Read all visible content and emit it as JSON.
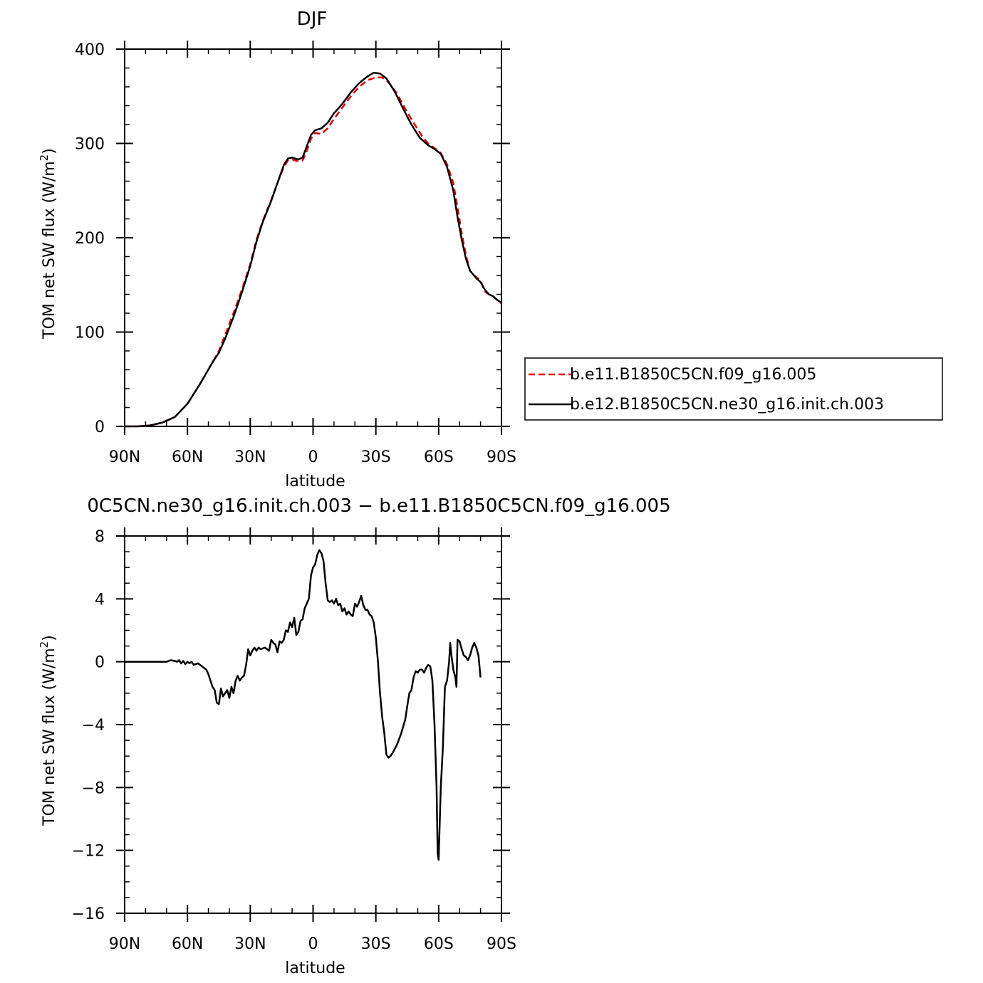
{
  "chart_data": [
    {
      "type": "line",
      "title": "DJF",
      "xlabel": "latitude",
      "ylabel": "TOM net SW flux (W/m²)",
      "ylabel_parts": {
        "main": "TOM net SW flux (W/m",
        "sup": "2",
        "close": ")"
      },
      "xlim": [
        90,
        -90
      ],
      "ylim": [
        0,
        400
      ],
      "x_ticks": [
        {
          "value": 90,
          "label": "90N"
        },
        {
          "value": 60,
          "label": "60N"
        },
        {
          "value": 30,
          "label": "30N"
        },
        {
          "value": 0,
          "label": "0"
        },
        {
          "value": -30,
          "label": "30S"
        },
        {
          "value": -60,
          "label": "60S"
        },
        {
          "value": -90,
          "label": "90S"
        }
      ],
      "y_ticks": [
        {
          "value": 0,
          "label": "0"
        },
        {
          "value": 100,
          "label": "100"
        },
        {
          "value": 200,
          "label": "200"
        },
        {
          "value": 300,
          "label": "300"
        },
        {
          "value": 400,
          "label": "400"
        }
      ],
      "legend_position": "right",
      "series": [
        {
          "name": "b.e11.B1850C5CN.f09_g16.005",
          "color": "#e00000",
          "dash": "dashed",
          "points": [
            [
              90,
              0
            ],
            [
              84,
              0
            ],
            [
              78,
              1
            ],
            [
              72,
              4
            ],
            [
              66,
              10
            ],
            [
              60,
              24
            ],
            [
              54,
              45
            ],
            [
              48,
              68
            ],
            [
              45,
              80
            ],
            [
              42,
              97
            ],
            [
              38,
              120
            ],
            [
              34,
              145
            ],
            [
              30,
              172
            ],
            [
              27,
              198
            ],
            [
              24,
              218
            ],
            [
              20,
              240
            ],
            [
              17,
              258
            ],
            [
              14,
              275
            ],
            [
              12,
              282
            ],
            [
              10,
              283
            ],
            [
              7,
              281
            ],
            [
              5,
              282
            ],
            [
              3,
              292
            ],
            [
              1,
              305
            ],
            [
              -1,
              311
            ],
            [
              -4,
              310
            ],
            [
              -7,
              316
            ],
            [
              -10,
              326
            ],
            [
              -14,
              338
            ],
            [
              -18,
              350
            ],
            [
              -22,
              360
            ],
            [
              -26,
              367
            ],
            [
              -30,
              370
            ],
            [
              -33,
              370
            ],
            [
              -36,
              365
            ],
            [
              -40,
              353
            ],
            [
              -44,
              337
            ],
            [
              -48,
              322
            ],
            [
              -52,
              308
            ],
            [
              -55,
              300
            ],
            [
              -58,
              295
            ],
            [
              -61,
              290
            ],
            [
              -64,
              278
            ],
            [
              -67,
              258
            ],
            [
              -69,
              232
            ],
            [
              -71,
              205
            ],
            [
              -73,
              182
            ],
            [
              -75,
              165
            ],
            [
              -78,
              158
            ],
            [
              -80,
              155
            ],
            [
              -82,
              143
            ],
            [
              -84,
              140
            ],
            [
              -86,
              138
            ],
            [
              -88,
              134
            ],
            [
              -90,
              130
            ]
          ]
        },
        {
          "name": "b.e12.B1850C5CN.ne30_g16.init.ch.003",
          "color": "#000000",
          "dash": "solid",
          "points": [
            [
              90,
              0
            ],
            [
              84,
              0
            ],
            [
              78,
              1
            ],
            [
              72,
              4
            ],
            [
              66,
              10
            ],
            [
              60,
              24
            ],
            [
              54,
              45
            ],
            [
              48,
              68
            ],
            [
              45,
              78
            ],
            [
              42,
              93
            ],
            [
              38,
              116
            ],
            [
              34,
              142
            ],
            [
              30,
              170
            ],
            [
              27,
              196
            ],
            [
              24,
              217
            ],
            [
              20,
              239
            ],
            [
              17,
              258
            ],
            [
              14,
              277
            ],
            [
              12,
              284
            ],
            [
              10,
              285
            ],
            [
              7,
              283
            ],
            [
              5,
              285
            ],
            [
              3,
              297
            ],
            [
              1,
              309
            ],
            [
              -1,
              314
            ],
            [
              -4,
              316
            ],
            [
              -7,
              322
            ],
            [
              -10,
              332
            ],
            [
              -14,
              342
            ],
            [
              -18,
              354
            ],
            [
              -22,
              364
            ],
            [
              -26,
              371
            ],
            [
              -29,
              375
            ],
            [
              -32,
              374
            ],
            [
              -35,
              369
            ],
            [
              -39,
              355
            ],
            [
              -43,
              337
            ],
            [
              -47,
              320
            ],
            [
              -51,
              306
            ],
            [
              -55,
              298
            ],
            [
              -58,
              294
            ],
            [
              -61,
              289
            ],
            [
              -64,
              275
            ],
            [
              -67,
              250
            ],
            [
              -69,
              222
            ],
            [
              -71,
              198
            ],
            [
              -73,
              178
            ],
            [
              -75,
              165
            ],
            [
              -78,
              157
            ],
            [
              -80,
              153
            ],
            [
              -82,
              145
            ],
            [
              -84,
              140
            ],
            [
              -86,
              138
            ],
            [
              -88,
              134
            ],
            [
              -90,
              131
            ]
          ]
        }
      ]
    },
    {
      "type": "line",
      "title": "0C5CN.ne30_g16.init.ch.003 − b.e11.B1850C5CN.f09_g16.005",
      "xlabel": "latitude",
      "ylabel": "TOM net SW flux (W/m²)",
      "ylabel_parts": {
        "main": "TOM net SW flux (W/m",
        "sup": "2",
        "close": ")"
      },
      "xlim": [
        90,
        -90
      ],
      "ylim": [
        -16,
        8
      ],
      "x_ticks": [
        {
          "value": 90,
          "label": "90N"
        },
        {
          "value": 60,
          "label": "60N"
        },
        {
          "value": 30,
          "label": "30N"
        },
        {
          "value": 0,
          "label": "0"
        },
        {
          "value": -30,
          "label": "30S"
        },
        {
          "value": -60,
          "label": "60S"
        },
        {
          "value": -90,
          "label": "90S"
        }
      ],
      "y_ticks": [
        {
          "value": -16,
          "label": "−16"
        },
        {
          "value": -12,
          "label": "−12"
        },
        {
          "value": -8,
          "label": "−8"
        },
        {
          "value": -4,
          "label": "−4"
        },
        {
          "value": 0,
          "label": "0"
        },
        {
          "value": 4,
          "label": "4"
        },
        {
          "value": 8,
          "label": "8"
        }
      ],
      "series": [
        {
          "color": "#000000",
          "dash": "solid",
          "points": [
            [
              90,
              0
            ],
            [
              80,
              0
            ],
            [
              70,
              0
            ],
            [
              68,
              0.1
            ],
            [
              66,
              0.05
            ],
            [
              65,
              0
            ],
            [
              64,
              0.1
            ],
            [
              63,
              -0.1
            ],
            [
              62,
              0.05
            ],
            [
              61,
              -0.15
            ],
            [
              60,
              0
            ],
            [
              59,
              -0.1
            ],
            [
              58,
              0
            ],
            [
              57,
              -0.2
            ],
            [
              55,
              -0.1
            ],
            [
              53,
              -0.3
            ],
            [
              51,
              -0.5
            ],
            [
              50,
              -0.8
            ],
            [
              48,
              -1.6
            ],
            [
              47,
              -1.8
            ],
            [
              46,
              -2.6
            ],
            [
              45,
              -2.7
            ],
            [
              44,
              -1.7
            ],
            [
              43,
              -2.2
            ],
            [
              42,
              -2.0
            ],
            [
              41,
              -1.8
            ],
            [
              40,
              -2.3
            ],
            [
              39,
              -1.6
            ],
            [
              38,
              -2.0
            ],
            [
              37,
              -1.2
            ],
            [
              36,
              -0.9
            ],
            [
              35,
              -1.2
            ],
            [
              34,
              -1.0
            ],
            [
              33,
              -0.9
            ],
            [
              32,
              -0.2
            ],
            [
              31,
              0.8
            ],
            [
              30,
              0.4
            ],
            [
              29,
              0.7
            ],
            [
              28,
              0.9
            ],
            [
              27,
              0.7
            ],
            [
              26,
              0.9
            ],
            [
              25,
              0.8
            ],
            [
              23,
              0.9
            ],
            [
              21,
              0.7
            ],
            [
              20,
              1.4
            ],
            [
              19,
              1.2
            ],
            [
              18,
              1.1
            ],
            [
              17,
              0.6
            ],
            [
              16,
              1.3
            ],
            [
              15,
              1.2
            ],
            [
              14,
              1.4
            ],
            [
              13,
              2.0
            ],
            [
              12,
              1.9
            ],
            [
              11,
              2.5
            ],
            [
              10,
              2.2
            ],
            [
              9,
              2.8
            ],
            [
              8,
              1.7
            ],
            [
              7,
              1.9
            ],
            [
              6,
              2.6
            ],
            [
              5,
              2.7
            ],
            [
              4,
              3.4
            ],
            [
              3,
              3.7
            ],
            [
              2,
              4.0
            ],
            [
              1,
              5.5
            ],
            [
              0,
              6.0
            ],
            [
              -1,
              6.2
            ],
            [
              -2,
              6.8
            ],
            [
              -3,
              7.1
            ],
            [
              -4,
              6.9
            ],
            [
              -5,
              6.4
            ],
            [
              -6,
              5.0
            ],
            [
              -7,
              3.9
            ],
            [
              -8,
              3.8
            ],
            [
              -9,
              3.9
            ],
            [
              -10,
              3.7
            ],
            [
              -11,
              4.0
            ],
            [
              -12,
              3.6
            ],
            [
              -13,
              3.7
            ],
            [
              -14,
              3.2
            ],
            [
              -15,
              3.4
            ],
            [
              -16,
              3.0
            ],
            [
              -17,
              3.2
            ],
            [
              -18,
              3.0
            ],
            [
              -19,
              2.9
            ],
            [
              -20,
              3.7
            ],
            [
              -21,
              3.5
            ],
            [
              -22,
              3.8
            ],
            [
              -23,
              4.2
            ],
            [
              -24,
              3.6
            ],
            [
              -25,
              3.3
            ],
            [
              -26,
              3.3
            ],
            [
              -27,
              3.0
            ],
            [
              -28,
              2.9
            ],
            [
              -29,
              2.5
            ],
            [
              -30,
              1.5
            ],
            [
              -31,
              0
            ],
            [
              -32,
              -2.0
            ],
            [
              -33,
              -3.5
            ],
            [
              -34,
              -4.5
            ],
            [
              -35,
              -5.9
            ],
            [
              -36,
              -6.1
            ],
            [
              -37,
              -6.0
            ],
            [
              -38,
              -5.8
            ],
            [
              -40,
              -5.3
            ],
            [
              -42,
              -4.6
            ],
            [
              -44,
              -3.7
            ],
            [
              -45,
              -2.8
            ],
            [
              -46,
              -2.0
            ],
            [
              -47,
              -1.8
            ],
            [
              -48,
              -1.0
            ],
            [
              -49,
              -0.6
            ],
            [
              -50,
              -0.7
            ],
            [
              -51,
              -0.5
            ],
            [
              -52,
              -0.5
            ],
            [
              -53,
              -0.7
            ],
            [
              -54,
              -0.4
            ],
            [
              -55,
              -0.2
            ],
            [
              -56,
              -0.3
            ],
            [
              -57,
              -1.2
            ],
            [
              -58,
              -4.0
            ],
            [
              -59,
              -8.0
            ],
            [
              -59.5,
              -12.2
            ],
            [
              -60,
              -12.6
            ],
            [
              -61,
              -8.0
            ],
            [
              -62,
              -5.5
            ],
            [
              -63,
              -1.6
            ],
            [
              -64,
              -1.2
            ],
            [
              -65,
              0
            ],
            [
              -65.5,
              1.2
            ],
            [
              -66,
              0.5
            ],
            [
              -67,
              -0.5
            ],
            [
              -68,
              -1.0
            ],
            [
              -68.5,
              -1.6
            ],
            [
              -69,
              1.4
            ],
            [
              -70,
              1.3
            ],
            [
              -71,
              0.8
            ],
            [
              -72,
              0.4
            ],
            [
              -73,
              0.3
            ],
            [
              -74,
              0.1
            ],
            [
              -75,
              0.4
            ],
            [
              -76,
              0.9
            ],
            [
              -77,
              1.2
            ],
            [
              -78,
              0.9
            ],
            [
              -79,
              0.4
            ],
            [
              -80,
              -1.0
            ]
          ]
        }
      ]
    }
  ]
}
